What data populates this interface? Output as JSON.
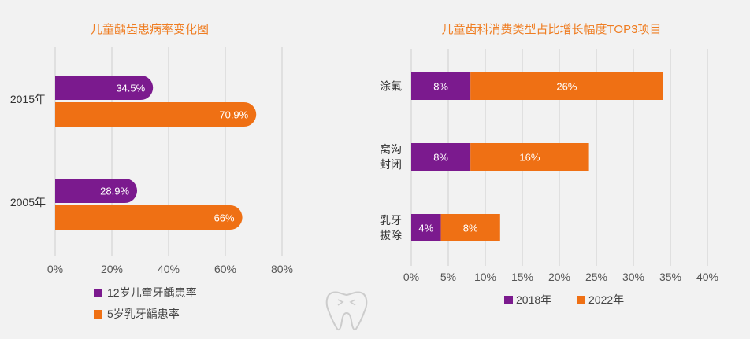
{
  "colors": {
    "purple": "#7b1a8e",
    "orange": "#ef7014",
    "title": "#ef7d22",
    "grid": "#cfcfcf"
  },
  "chart_data": [
    {
      "type": "bar",
      "orientation": "horizontal",
      "title": "儿童龋齿患病率变化图",
      "categories": [
        "2015年",
        "2005年"
      ],
      "series": [
        {
          "name": "12岁儿童牙齲患率",
          "values": [
            34.5,
            28.9
          ],
          "labels": [
            "34.5%",
            "28.9%"
          ]
        },
        {
          "name": "5岁乳牙齲患率",
          "values": [
            70.9,
            66
          ],
          "labels": [
            "70.9%",
            "66%"
          ]
        }
      ],
      "xlim": [
        0,
        80
      ],
      "xticks": [
        "0%",
        "20%",
        "40%",
        "60%",
        "80%"
      ],
      "grid": true,
      "legend": "bottom"
    },
    {
      "type": "bar",
      "orientation": "horizontal",
      "stacked": true,
      "title": "儿童齿科消费类型占比增长幅度TOP3项目",
      "categories": [
        [
          "涂氟"
        ],
        [
          "窝沟",
          "封闭"
        ],
        [
          "乳牙",
          "拔除"
        ]
      ],
      "series": [
        {
          "name": "2018年",
          "values": [
            8,
            8,
            4
          ],
          "labels": [
            "8%",
            "8%",
            "4%"
          ]
        },
        {
          "name": "2022年",
          "values": [
            26,
            16,
            8
          ],
          "labels": [
            "26%",
            "16%",
            "8%"
          ]
        }
      ],
      "xlim": [
        0,
        40
      ],
      "xticks": [
        "0%",
        "5%",
        "10%",
        "15%",
        "20%",
        "25%",
        "30%",
        "35%",
        "40%"
      ],
      "grid": true,
      "legend": "bottom"
    }
  ],
  "decor": {
    "icon": "tooth-icon"
  }
}
